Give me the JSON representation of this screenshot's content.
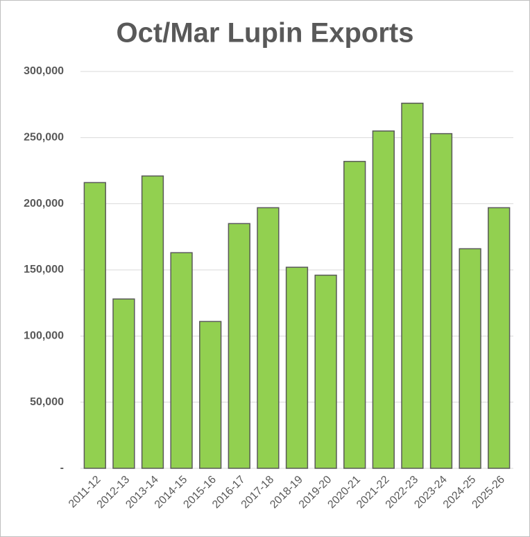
{
  "chart_data": {
    "type": "bar",
    "title": "Oct/Mar Lupin Exports",
    "categories": [
      "2011-12",
      "2012-13",
      "2013-14",
      "2014-15",
      "2015-16",
      "2016-17",
      "2017-18",
      "2018-19",
      "2019-20",
      "2020-21",
      "2021-22",
      "2022-23",
      "2023-24",
      "2024-25",
      "2025-26"
    ],
    "values": [
      216000,
      128000,
      221000,
      163000,
      111000,
      185000,
      197000,
      152000,
      146000,
      232000,
      255000,
      276000,
      253000,
      166000,
      197000
    ],
    "color": "#92d050",
    "ylim": [
      0,
      300000
    ],
    "yticks": [
      {
        "value": 0,
        "label": "-"
      },
      {
        "value": 50000,
        "label": "50,000"
      },
      {
        "value": 100000,
        "label": "100,000"
      },
      {
        "value": 150000,
        "label": "150,000"
      },
      {
        "value": 200000,
        "label": "200,000"
      },
      {
        "value": 250000,
        "label": "250,000"
      },
      {
        "value": 300000,
        "label": "300,000"
      }
    ],
    "grid": true
  }
}
